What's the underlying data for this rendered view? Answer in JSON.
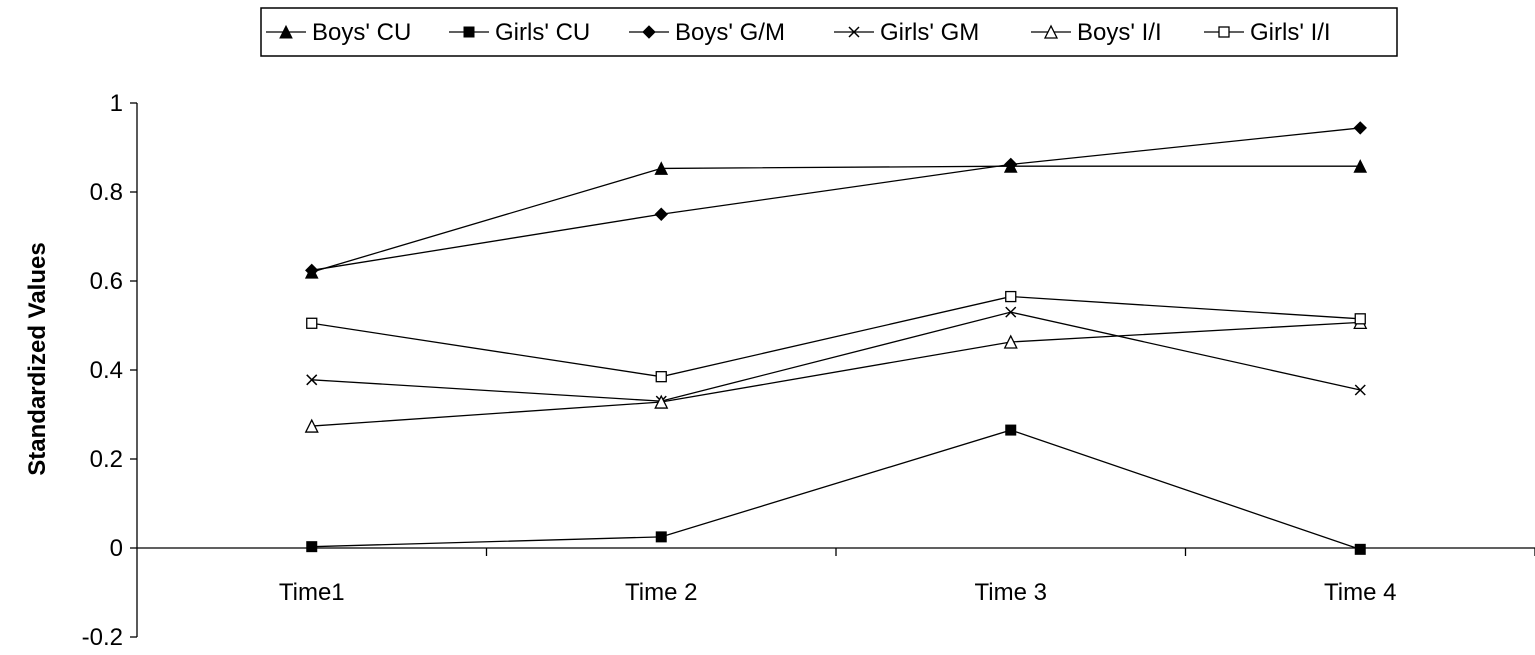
{
  "chart_data": {
    "type": "line",
    "categories": [
      "Time1",
      "Time 2",
      "Time 3",
      "Time 4"
    ],
    "ylabel": "Standardized Values",
    "xlabel": "",
    "ylim": [
      -0.2,
      1
    ],
    "yticks": [
      "-0.2",
      "0",
      "0.2",
      "0.4",
      "0.6",
      "0.8",
      "1"
    ],
    "grid": false,
    "legend_position": "top",
    "series": [
      {
        "name": "Boys' CU",
        "marker": "filled-triangle",
        "values": [
          0.62,
          0.853,
          0.858,
          0.858
        ]
      },
      {
        "name": "Girls' CU",
        "marker": "filled-square",
        "values": [
          0.003,
          0.025,
          0.265,
          -0.003
        ]
      },
      {
        "name": "Boys' G/M",
        "marker": "filled-diamond",
        "values": [
          0.624,
          0.75,
          0.862,
          0.944
        ]
      },
      {
        "name": "Girls' GM",
        "marker": "x",
        "values": [
          0.378,
          0.33,
          0.53,
          0.355
        ]
      },
      {
        "name": "Boys' I/I",
        "marker": "open-triangle",
        "values": [
          0.274,
          0.328,
          0.463,
          0.507
        ]
      },
      {
        "name": "Girls' I/I",
        "marker": "open-square",
        "values": [
          0.505,
          0.385,
          0.565,
          0.515
        ]
      }
    ]
  }
}
